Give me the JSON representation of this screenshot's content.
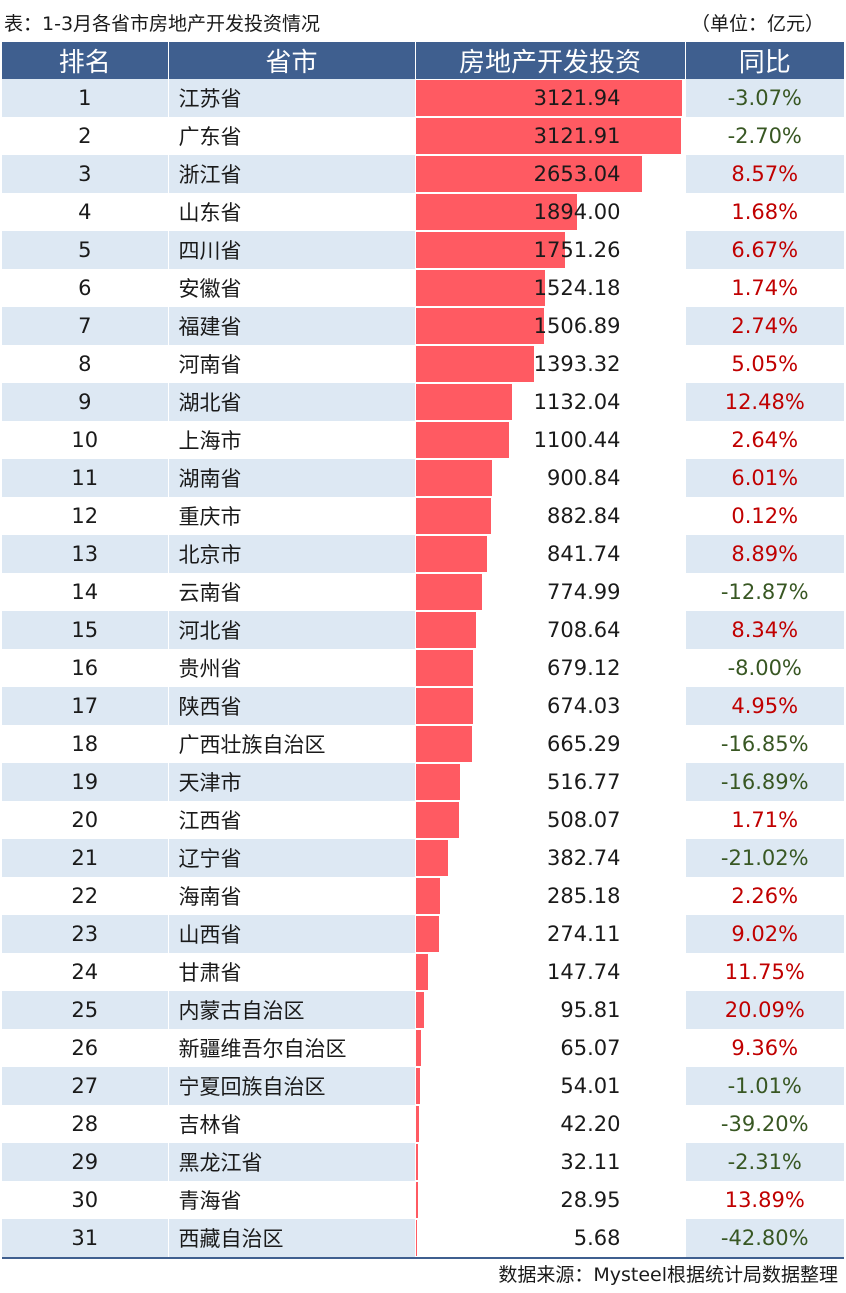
{
  "caption": {
    "title": "表：1-3月各省市房地产开发投资情况",
    "unit": "（单位：亿元）"
  },
  "table": {
    "headers": {
      "rank": "排名",
      "province": "省市",
      "investment": "房地产开发投资",
      "yoy": "同比"
    }
  },
  "source": "数据来源：Mysteel根据统计局数据整理",
  "colors": {
    "header_bg": "#3f5f8f",
    "bar": "#ff5a62",
    "row_alt": "#dde8f3",
    "positive": "#c00000",
    "negative": "#385723"
  },
  "chart_data": {
    "type": "table",
    "columns": [
      "排名",
      "省市",
      "房地产开发投资",
      "同比"
    ],
    "bar_max": 3121.94,
    "rows": [
      {
        "rank": "1",
        "province": "江苏省",
        "investment": 3121.94,
        "investment_text": "3121.94",
        "yoy": "-3.07%"
      },
      {
        "rank": "2",
        "province": "广东省",
        "investment": 3121.91,
        "investment_text": "3121.91",
        "yoy": "-2.70%"
      },
      {
        "rank": "3",
        "province": "浙江省",
        "investment": 2653.04,
        "investment_text": "2653.04",
        "yoy": "8.57%"
      },
      {
        "rank": "4",
        "province": "山东省",
        "investment": 1894.0,
        "investment_text": "1894.00",
        "yoy": "1.68%"
      },
      {
        "rank": "5",
        "province": "四川省",
        "investment": 1751.26,
        "investment_text": "1751.26",
        "yoy": "6.67%"
      },
      {
        "rank": "6",
        "province": "安徽省",
        "investment": 1524.18,
        "investment_text": "1524.18",
        "yoy": "1.74%"
      },
      {
        "rank": "7",
        "province": "福建省",
        "investment": 1506.89,
        "investment_text": "1506.89",
        "yoy": "2.74%"
      },
      {
        "rank": "8",
        "province": "河南省",
        "investment": 1393.32,
        "investment_text": "1393.32",
        "yoy": "5.05%"
      },
      {
        "rank": "9",
        "province": "湖北省",
        "investment": 1132.04,
        "investment_text": "1132.04",
        "yoy": "12.48%"
      },
      {
        "rank": "10",
        "province": "上海市",
        "investment": 1100.44,
        "investment_text": "1100.44",
        "yoy": "2.64%"
      },
      {
        "rank": "11",
        "province": "湖南省",
        "investment": 900.84,
        "investment_text": "900.84",
        "yoy": "6.01%"
      },
      {
        "rank": "12",
        "province": "重庆市",
        "investment": 882.84,
        "investment_text": "882.84",
        "yoy": "0.12%"
      },
      {
        "rank": "13",
        "province": "北京市",
        "investment": 841.74,
        "investment_text": "841.74",
        "yoy": "8.89%"
      },
      {
        "rank": "14",
        "province": "云南省",
        "investment": 774.99,
        "investment_text": "774.99",
        "yoy": "-12.87%"
      },
      {
        "rank": "15",
        "province": "河北省",
        "investment": 708.64,
        "investment_text": "708.64",
        "yoy": "8.34%"
      },
      {
        "rank": "16",
        "province": "贵州省",
        "investment": 679.12,
        "investment_text": "679.12",
        "yoy": "-8.00%"
      },
      {
        "rank": "17",
        "province": "陕西省",
        "investment": 674.03,
        "investment_text": "674.03",
        "yoy": "4.95%"
      },
      {
        "rank": "18",
        "province": "广西壮族自治区",
        "investment": 665.29,
        "investment_text": "665.29",
        "yoy": "-16.85%"
      },
      {
        "rank": "19",
        "province": "天津市",
        "investment": 516.77,
        "investment_text": "516.77",
        "yoy": "-16.89%"
      },
      {
        "rank": "20",
        "province": "江西省",
        "investment": 508.07,
        "investment_text": "508.07",
        "yoy": "1.71%"
      },
      {
        "rank": "21",
        "province": "辽宁省",
        "investment": 382.74,
        "investment_text": "382.74",
        "yoy": "-21.02%"
      },
      {
        "rank": "22",
        "province": "海南省",
        "investment": 285.18,
        "investment_text": "285.18",
        "yoy": "2.26%"
      },
      {
        "rank": "23",
        "province": "山西省",
        "investment": 274.11,
        "investment_text": "274.11",
        "yoy": "9.02%"
      },
      {
        "rank": "24",
        "province": "甘肃省",
        "investment": 147.74,
        "investment_text": "147.74",
        "yoy": "11.75%"
      },
      {
        "rank": "25",
        "province": "内蒙古自治区",
        "investment": 95.81,
        "investment_text": "95.81",
        "yoy": "20.09%"
      },
      {
        "rank": "26",
        "province": "新疆维吾尔自治区",
        "investment": 65.07,
        "investment_text": "65.07",
        "yoy": "9.36%"
      },
      {
        "rank": "27",
        "province": "宁夏回族自治区",
        "investment": 54.01,
        "investment_text": "54.01",
        "yoy": "-1.01%"
      },
      {
        "rank": "28",
        "province": "吉林省",
        "investment": 42.2,
        "investment_text": "42.20",
        "yoy": "-39.20%"
      },
      {
        "rank": "29",
        "province": "黑龙江省",
        "investment": 32.11,
        "investment_text": "32.11",
        "yoy": "-2.31%"
      },
      {
        "rank": "30",
        "province": "青海省",
        "investment": 28.95,
        "investment_text": "28.95",
        "yoy": "13.89%"
      },
      {
        "rank": "31",
        "province": "西藏自治区",
        "investment": 5.68,
        "investment_text": "5.68",
        "yoy": "-42.80%"
      }
    ]
  }
}
